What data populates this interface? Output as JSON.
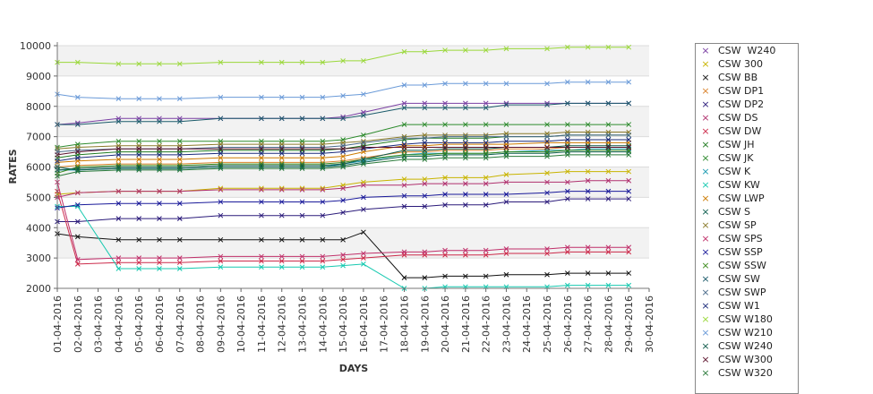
{
  "chart_data": {
    "type": "line",
    "xlabel": "DAYS",
    "ylabel": "RATES",
    "ylim": [
      2000,
      10000
    ],
    "yticks": [
      2000,
      3000,
      4000,
      5000,
      6000,
      7000,
      8000,
      9000,
      10000
    ],
    "grid": "alternating horizontal bands",
    "legend_position": "right",
    "x": [
      "01-04-2016",
      "02-04-2016",
      "03-04-2016",
      "04-04-2016",
      "05-04-2016",
      "06-04-2016",
      "07-04-2016",
      "08-04-2016",
      "09-04-2016",
      "10-04-2016",
      "11-04-2016",
      "12-04-2016",
      "13-04-2016",
      "14-04-2016",
      "15-04-2016",
      "16-04-2016",
      "17-04-2016",
      "18-04-2016",
      "19-04-2016",
      "20-04-2016",
      "21-04-2016",
      "22-04-2016",
      "23-04-2016",
      "24-04-2016",
      "25-04-2016",
      "26-04-2016",
      "27-04-2016",
      "28-04-2016",
      "29-04-2016",
      "30-04-2016"
    ],
    "series": [
      {
        "name": "CSW  W240",
        "color": "#7a3fa3",
        "values": [
          7400,
          7450,
          null,
          7600,
          7600,
          7600,
          7600,
          null,
          7600,
          null,
          7600,
          7600,
          7600,
          7600,
          7650,
          7800,
          null,
          8100,
          8100,
          8100,
          8100,
          8100,
          8100,
          null,
          8100,
          8100,
          8100,
          8100,
          8100,
          null
        ]
      },
      {
        "name": "CSW 300",
        "color": "#c8b400",
        "values": [
          5100,
          5150,
          null,
          5200,
          5200,
          5200,
          5200,
          null,
          5300,
          null,
          5300,
          5300,
          5300,
          5300,
          5400,
          5500,
          null,
          5600,
          5600,
          5650,
          5650,
          5650,
          5750,
          null,
          5800,
          5850,
          5850,
          5850,
          5850,
          null
        ]
      },
      {
        "name": "CSW BB",
        "color": "#111111",
        "values": [
          3800,
          3700,
          null,
          3600,
          3600,
          3600,
          3600,
          null,
          3600,
          null,
          3600,
          3600,
          3600,
          3600,
          3600,
          3850,
          null,
          2350,
          2350,
          2400,
          2400,
          2400,
          2450,
          null,
          2450,
          2500,
          2500,
          2500,
          2500,
          null
        ]
      },
      {
        "name": "CSW DP1",
        "color": "#d9822b",
        "values": [
          6000,
          6050,
          null,
          6100,
          6100,
          6100,
          6100,
          null,
          6150,
          null,
          6150,
          6150,
          6150,
          6150,
          6200,
          6300,
          null,
          6500,
          6500,
          6550,
          6550,
          6550,
          6600,
          null,
          6600,
          6650,
          6650,
          6650,
          6650,
          null
        ]
      },
      {
        "name": "CSW DP2",
        "color": "#2a1a7a",
        "values": [
          4200,
          4200,
          null,
          4300,
          4300,
          4300,
          4300,
          null,
          4400,
          null,
          4400,
          4400,
          4400,
          4400,
          4500,
          4600,
          null,
          4700,
          4700,
          4750,
          4750,
          4750,
          4850,
          null,
          4850,
          4950,
          4950,
          4950,
          4950,
          null
        ]
      },
      {
        "name": "CSW DS",
        "color": "#b0306e",
        "values": [
          5000,
          5150,
          null,
          5200,
          5200,
          5200,
          5200,
          null,
          5250,
          null,
          5250,
          5250,
          5250,
          5250,
          5300,
          5400,
          null,
          5400,
          5450,
          5450,
          5450,
          5450,
          5500,
          null,
          5500,
          5500,
          5550,
          5550,
          5550,
          null
        ]
      },
      {
        "name": "CSW DW",
        "color": "#cc2a4a",
        "values": [
          5200,
          2800,
          null,
          2850,
          2850,
          2850,
          2850,
          null,
          2900,
          null,
          2900,
          2900,
          2900,
          2900,
          2950,
          3000,
          null,
          3100,
          3100,
          3100,
          3100,
          3100,
          3150,
          null,
          3150,
          3200,
          3200,
          3200,
          3200,
          null
        ]
      },
      {
        "name": "CSW JH",
        "color": "#1f7a1f",
        "values": [
          6300,
          6400,
          null,
          6500,
          6500,
          6500,
          6500,
          null,
          6550,
          null,
          6550,
          6550,
          6550,
          6550,
          6600,
          6700,
          null,
          6900,
          6950,
          6950,
          6950,
          6950,
          7000,
          null,
          7000,
          7050,
          7050,
          7050,
          7050,
          null
        ]
      },
      {
        "name": "CSW JK",
        "color": "#2e8b2e",
        "values": [
          6650,
          6750,
          null,
          6850,
          6850,
          6850,
          6850,
          null,
          6850,
          null,
          6850,
          6850,
          6850,
          6850,
          6900,
          7050,
          null,
          7400,
          7400,
          7400,
          7400,
          7400,
          7400,
          null,
          7400,
          7400,
          7400,
          7400,
          7400,
          null
        ]
      },
      {
        "name": "CSW K",
        "color": "#1a9ab0",
        "values": [
          5900,
          5900,
          null,
          5950,
          5950,
          5950,
          5950,
          null,
          6000,
          null,
          6000,
          6000,
          6000,
          6000,
          6100,
          6200,
          null,
          6400,
          6450,
          6450,
          6450,
          6450,
          6500,
          null,
          6550,
          6550,
          6600,
          6600,
          6600,
          null
        ]
      },
      {
        "name": "CSW KW",
        "color": "#17c9b0",
        "values": [
          4700,
          4700,
          null,
          2650,
          2650,
          2650,
          2650,
          null,
          2700,
          null,
          2700,
          2700,
          2700,
          2700,
          2750,
          2800,
          null,
          2000,
          2000,
          2050,
          2050,
          2050,
          2050,
          null,
          2050,
          2100,
          2100,
          2100,
          2100,
          null
        ]
      },
      {
        "name": "CSW LWP",
        "color": "#cc7a00",
        "values": [
          6150,
          6200,
          null,
          6250,
          6250,
          6250,
          6250,
          null,
          6300,
          null,
          6300,
          6300,
          6300,
          6300,
          6350,
          6500,
          null,
          6700,
          6700,
          6750,
          6750,
          6750,
          6750,
          null,
          6800,
          6800,
          6800,
          6800,
          6800,
          null
        ]
      },
      {
        "name": "CSW S",
        "color": "#0f5f4f",
        "values": [
          6000,
          5900,
          null,
          5950,
          5950,
          5950,
          5950,
          null,
          6000,
          null,
          6000,
          6000,
          6000,
          6000,
          6050,
          6150,
          null,
          6350,
          6350,
          6400,
          6400,
          6400,
          6450,
          null,
          6450,
          6500,
          6500,
          6500,
          6500,
          null
        ]
      },
      {
        "name": "CSW SP",
        "color": "#8a7a2a",
        "values": [
          6600,
          6650,
          null,
          6700,
          6700,
          6700,
          6700,
          null,
          6750,
          null,
          6750,
          6750,
          6750,
          6750,
          6800,
          6850,
          null,
          7000,
          7050,
          7050,
          7050,
          7050,
          7100,
          null,
          7100,
          7150,
          7150,
          7150,
          7150,
          null
        ]
      },
      {
        "name": "CSW SPS",
        "color": "#c0306a",
        "values": [
          5500,
          2950,
          null,
          3000,
          3000,
          3000,
          3000,
          null,
          3050,
          null,
          3050,
          3050,
          3050,
          3050,
          3100,
          3150,
          null,
          3200,
          3200,
          3250,
          3250,
          3250,
          3300,
          null,
          3300,
          3350,
          3350,
          3350,
          3350,
          null
        ]
      },
      {
        "name": "CSW SSP",
        "color": "#1a1a9a",
        "values": [
          4650,
          4750,
          null,
          4800,
          4800,
          4800,
          4800,
          null,
          4850,
          null,
          4850,
          4850,
          4850,
          4850,
          4900,
          5000,
          null,
          5050,
          5050,
          5100,
          5100,
          5100,
          5100,
          null,
          5150,
          5200,
          5200,
          5200,
          5200,
          null
        ]
      },
      {
        "name": "CSW SSW",
        "color": "#3a8a1a",
        "values": [
          5800,
          6000,
          null,
          6050,
          6050,
          6050,
          6050,
          null,
          6100,
          null,
          6100,
          6100,
          6100,
          6100,
          6150,
          6250,
          null,
          6400,
          6400,
          6450,
          6450,
          6450,
          6500,
          null,
          6500,
          6550,
          6550,
          6550,
          6550,
          null
        ]
      },
      {
        "name": "CSW SW",
        "color": "#1a5a6a",
        "values": [
          7400,
          7400,
          null,
          7500,
          7500,
          7500,
          7500,
          null,
          7600,
          null,
          7600,
          7600,
          7600,
          7600,
          7600,
          7700,
          null,
          7950,
          7950,
          7950,
          7950,
          7950,
          8050,
          null,
          8050,
          8100,
          8100,
          8100,
          8100,
          null
        ]
      },
      {
        "name": "CSW SWP",
        "color": "#4a6a8a",
        "values": [
          6500,
          6550,
          null,
          6600,
          6600,
          6600,
          6600,
          null,
          6650,
          null,
          6650,
          6650,
          6650,
          6650,
          6700,
          6800,
          null,
          6950,
          6950,
          7000,
          7000,
          7000,
          7000,
          null,
          7000,
          7050,
          7050,
          7050,
          7050,
          null
        ]
      },
      {
        "name": "CSW W1",
        "color": "#1a2a7a",
        "values": [
          6200,
          6300,
          null,
          6400,
          6400,
          6400,
          6400,
          null,
          6450,
          null,
          6450,
          6450,
          6450,
          6450,
          6500,
          6600,
          null,
          6750,
          6800,
          6800,
          6800,
          6800,
          6850,
          null,
          6850,
          6900,
          6900,
          6900,
          6900,
          null
        ]
      },
      {
        "name": "CSW W180",
        "color": "#9ad83a",
        "values": [
          9450,
          9450,
          null,
          9400,
          9400,
          9400,
          9400,
          null,
          9450,
          null,
          9450,
          9450,
          9450,
          9450,
          9500,
          9500,
          null,
          9800,
          9800,
          9850,
          9850,
          9850,
          9900,
          null,
          9900,
          9950,
          9950,
          9950,
          9950,
          null
        ]
      },
      {
        "name": "CSW W210",
        "color": "#6a9ad8",
        "values": [
          8400,
          8300,
          null,
          8250,
          8250,
          8250,
          8250,
          null,
          8300,
          null,
          8300,
          8300,
          8300,
          8300,
          8350,
          8400,
          null,
          8700,
          8700,
          8750,
          8750,
          8750,
          8750,
          null,
          8750,
          8800,
          8800,
          8800,
          8800,
          null
        ]
      },
      {
        "name": "CSW W240",
        "color": "#0f5a4a",
        "values": [
          5900,
          5950,
          null,
          6000,
          6000,
          6000,
          6000,
          null,
          6050,
          null,
          6050,
          6050,
          6050,
          6050,
          6100,
          6250,
          null,
          6550,
          6550,
          6600,
          6600,
          6600,
          6650,
          null,
          6650,
          6700,
          6700,
          6700,
          6700,
          null
        ]
      },
      {
        "name": "CSW W300",
        "color": "#5a0f2a",
        "values": [
          6400,
          6500,
          null,
          6600,
          6600,
          6600,
          6600,
          null,
          6600,
          null,
          6600,
          6600,
          6600,
          6600,
          6600,
          6650,
          null,
          6650,
          6650,
          6650,
          6650,
          6650,
          6650,
          null,
          6650,
          6650,
          6650,
          6650,
          6650,
          null
        ]
      },
      {
        "name": "CSW W320",
        "color": "#2a7a3a",
        "values": [
          5700,
          5850,
          null,
          5900,
          5900,
          5900,
          5900,
          null,
          5950,
          null,
          5950,
          5950,
          5950,
          5950,
          6000,
          6100,
          null,
          6250,
          6250,
          6300,
          6300,
          6300,
          6350,
          null,
          6350,
          6400,
          6400,
          6400,
          6400,
          null
        ]
      }
    ]
  }
}
